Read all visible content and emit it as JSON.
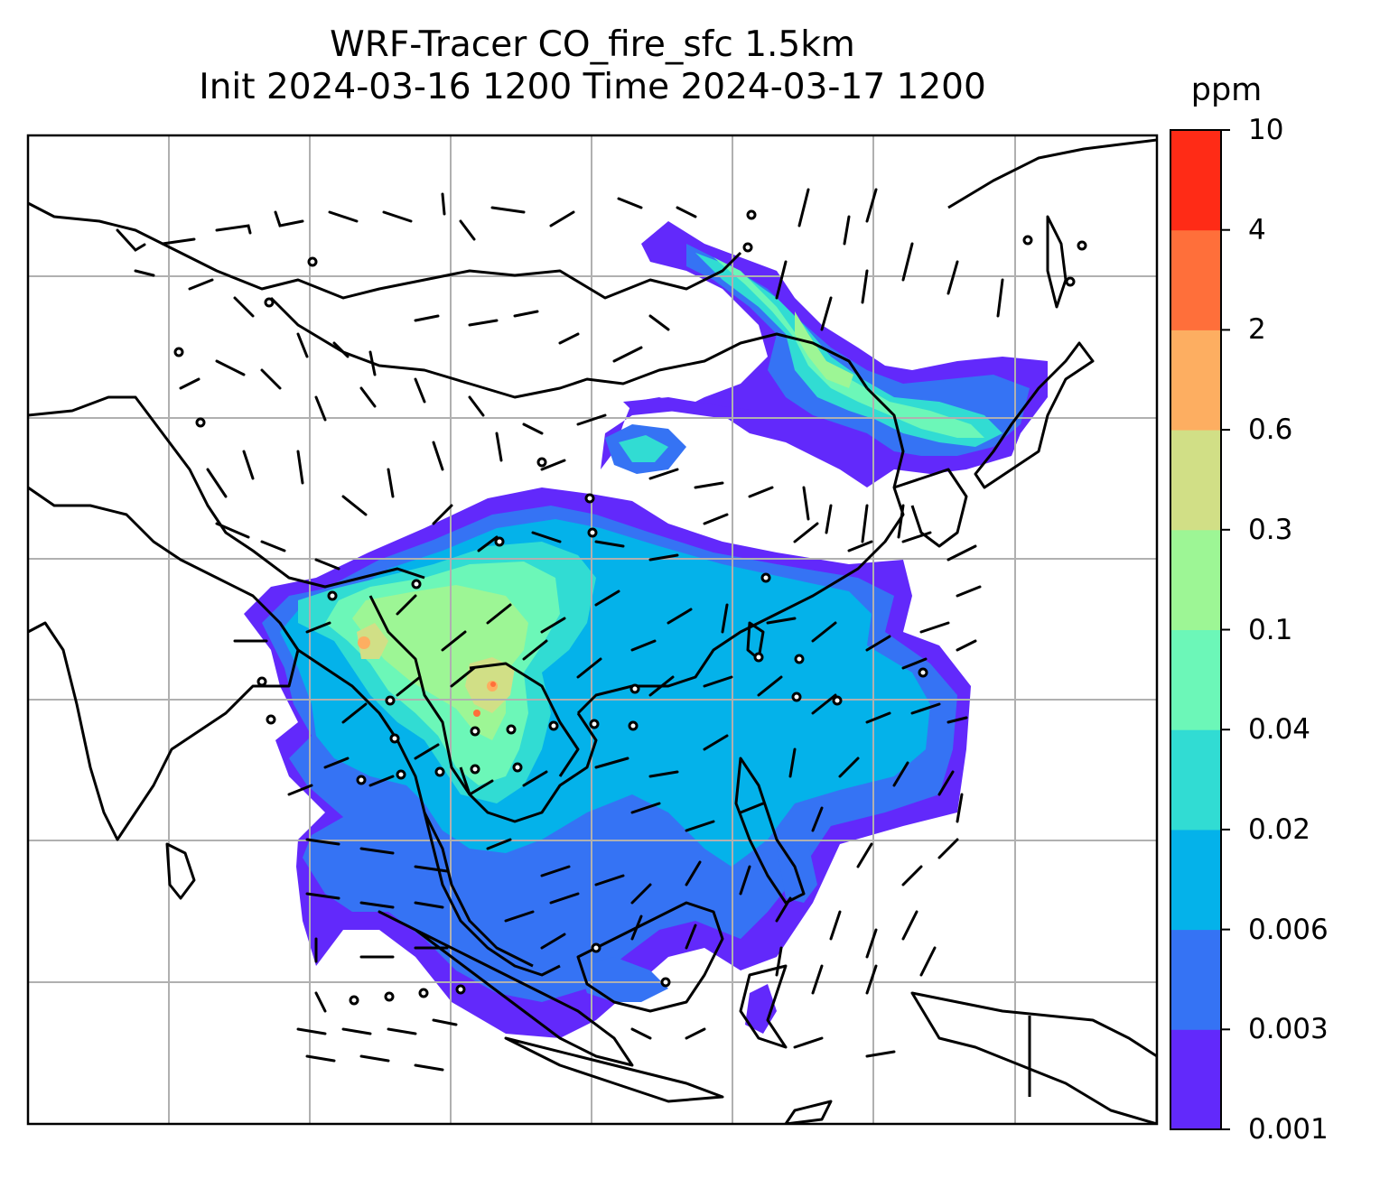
{
  "title": {
    "line1": "WRF-Tracer CO_fire_sfc 1.5km",
    "line2": "Init 2024-03-16 1200 Time 2024-03-17 1200"
  },
  "colorbar": {
    "unit": "ppm",
    "levels": [
      "0.001",
      "0.003",
      "0.006",
      "0.02",
      "0.04",
      "0.1",
      "0.3",
      "0.6",
      "2",
      "4",
      "10"
    ],
    "colors": [
      "#6229fb",
      "#3573f4",
      "#04b2ea",
      "#31dcd3",
      "#6cf7b8",
      "#9df695",
      "#d1df86",
      "#fdae61",
      "#ff6f3a",
      "#ff2b16"
    ]
  },
  "map": {
    "variable": "CO_fire_sfc",
    "background": "#ffffff",
    "coastline_color": "#000000",
    "gridline_color": "#b0b0b0",
    "wind_barb_color": "#000000"
  }
}
